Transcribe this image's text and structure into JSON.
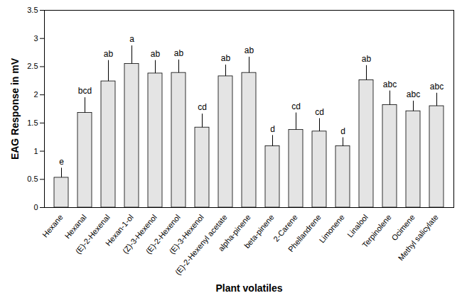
{
  "chart_data": {
    "type": "bar",
    "x_label": "Plant volatiles",
    "y_label": "EAG Response in mV",
    "categories": [
      "Hexane",
      "Hexanal",
      "(E)-2-Hexenal",
      "Hexan-1-ol",
      "(Z)-3-Hexenol",
      "(E)-2-Hexenol",
      "(E)-3-Hexenol",
      "(E)-2-Hexenyl acetate",
      "alpha-pinene",
      "beta-pinene",
      "2-Carene",
      "Phellandrene",
      "Limonene",
      "Linalool",
      "Terpinolene",
      "Ocimene",
      "Methyl salicylate"
    ],
    "values": [
      0.53,
      1.68,
      2.24,
      2.55,
      2.38,
      2.39,
      1.42,
      2.33,
      2.39,
      1.09,
      1.38,
      1.35,
      1.09,
      2.26,
      1.82,
      1.71,
      1.8
    ],
    "errors": [
      0.17,
      0.27,
      0.37,
      0.32,
      0.23,
      0.23,
      0.24,
      0.2,
      0.28,
      0.19,
      0.3,
      0.23,
      0.15,
      0.26,
      0.25,
      0.18,
      0.23
    ],
    "letters": [
      "e",
      "bcd",
      "ab",
      "a",
      "ab",
      "ab",
      "cd",
      "ab",
      "ab",
      "d",
      "cd",
      "cd",
      "d",
      "ab",
      "abc",
      "abc",
      "abc"
    ],
    "color": "#e4e4e4",
    "ylim": [
      0,
      3.5
    ],
    "yticks": [
      0,
      0.5,
      1,
      1.5,
      2,
      2.5,
      3,
      3.5
    ],
    "grid": false
  }
}
